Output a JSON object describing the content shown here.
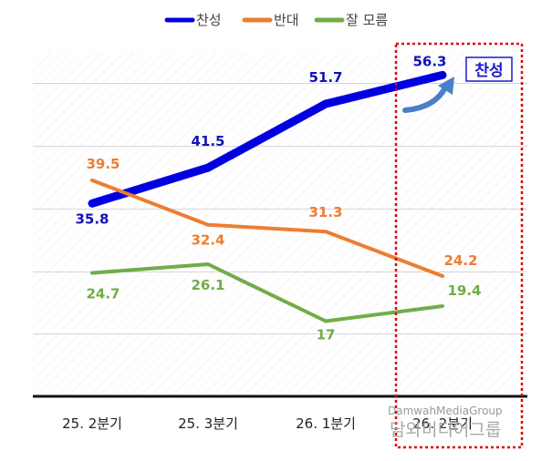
{
  "chart_data": {
    "type": "line",
    "categories": [
      "25. 2분기",
      "25. 3분기",
      "26. 1분기",
      "26. 2분기"
    ],
    "series": [
      {
        "name": "찬성",
        "color": "#0000e0",
        "values": [
          35.8,
          41.5,
          51.7,
          56.3
        ]
      },
      {
        "name": "반대",
        "color": "#ed7d31",
        "values": [
          39.5,
          32.4,
          31.3,
          24.2
        ]
      },
      {
        "name": "잘 모름",
        "color": "#70ad47",
        "values": [
          24.7,
          26.1,
          17,
          19.4
        ]
      }
    ],
    "ylim": [
      5,
      60
    ],
    "grid": true,
    "legend": "top",
    "title": "",
    "xlabel": "",
    "ylabel": ""
  },
  "callout": {
    "label": "찬성",
    "highlight_color": "#e00000"
  },
  "watermark": {
    "line1": "DamwahMediaGroup",
    "line2": "담와미디어그룹"
  }
}
